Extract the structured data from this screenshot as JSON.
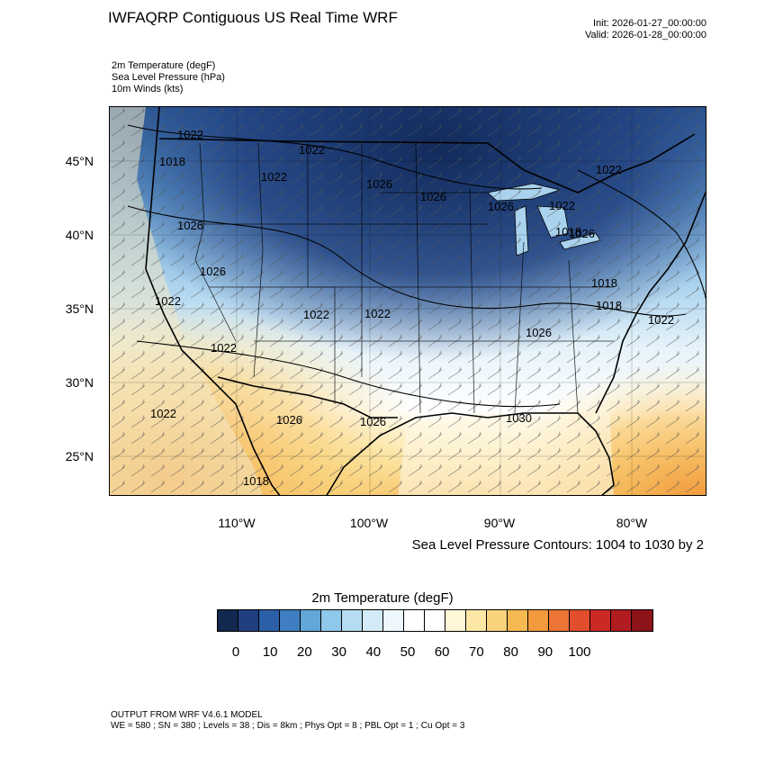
{
  "header": {
    "title": "IWFAQRP Contiguous US Real Time WRF",
    "init": "Init: 2026-01-27_00:00:00",
    "valid": "Valid: 2026-01-28_00:00:00"
  },
  "fields": [
    "2m Temperature   (degF)",
    "Sea Level Pressure   (hPa)",
    "10m Winds   (kts)"
  ],
  "map": {
    "lat_labels": [
      "45°N",
      "40°N",
      "35°N",
      "30°N",
      "25°N"
    ],
    "lon_labels": [
      "110°W",
      "100°W",
      "90°W",
      "80°W"
    ],
    "pressure_labels": [
      "1022",
      "1018",
      "1022",
      "1022",
      "1026",
      "1026",
      "1026",
      "1022",
      "1026",
      "1022",
      "1026",
      "1026",
      "1022",
      "1022",
      "1022",
      "1026",
      "1030",
      "1026",
      "1018",
      "1022",
      "1018",
      "1022",
      "1018",
      "1026",
      "1022",
      "1018"
    ],
    "contour_info": "Sea Level Pressure Contours: 1004 to 1030 by 2"
  },
  "colorbar": {
    "title": "2m Temperature  (degF)",
    "tick_labels": [
      "0",
      "10",
      "20",
      "30",
      "40",
      "50",
      "60",
      "70",
      "80",
      "90",
      "100"
    ],
    "colors": [
      "#13284f",
      "#203f80",
      "#2b5fa8",
      "#3f7ec0",
      "#62a7d8",
      "#8ec8ea",
      "#b5dcf2",
      "#d3ebf7",
      "#eef7fb",
      "#ffffff",
      "#ffffff",
      "#fff7d8",
      "#fce7a6",
      "#f9d27c",
      "#f6b951",
      "#f39a3c",
      "#ec7535",
      "#e24e2c",
      "#cb2a24",
      "#b01c20",
      "#8c1317"
    ]
  },
  "footer": {
    "line1": "OUTPUT FROM WRF V4.6.1 MODEL",
    "line2": "WE = 580 ; SN = 380 ; Levels = 38 ; Dis = 8km ; Phys Opt = 8 ; PBL Opt = 1 ; Cu Opt = 3"
  }
}
